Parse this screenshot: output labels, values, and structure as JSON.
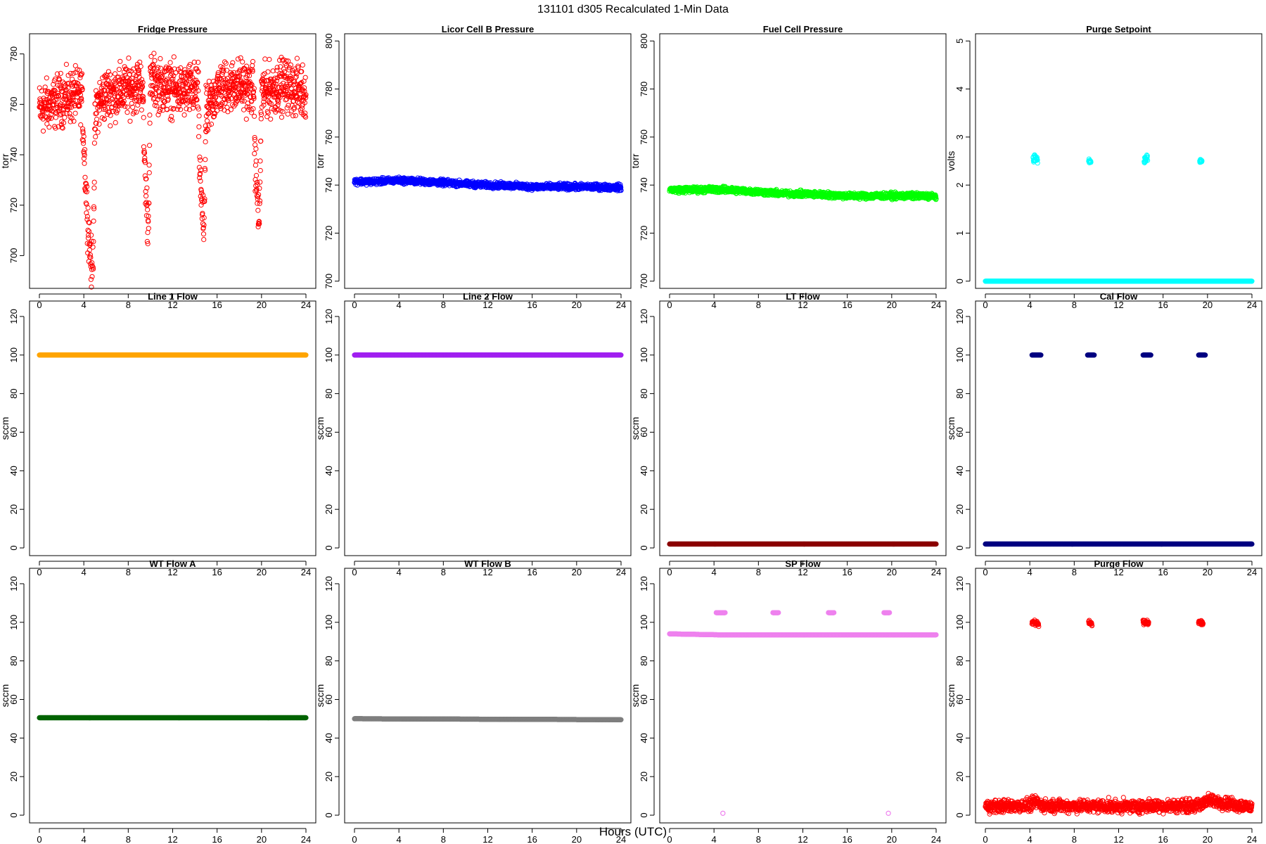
{
  "figure": {
    "title": "131101   d305   Recalculated 1-Min Data",
    "xlabel": "Hours (UTC)"
  },
  "chart_data": [
    {
      "type": "scatter",
      "title": "Fridge Pressure",
      "xlabel": "",
      "ylabel": "torr",
      "color": "#ff0000",
      "marker": "open-circle",
      "xlim": [
        0,
        24
      ],
      "xticks": [
        0,
        4,
        8,
        12,
        16,
        20,
        24
      ],
      "ylim": [
        687,
        788
      ],
      "yticks": [
        700,
        720,
        740,
        760,
        780
      ],
      "series": [
        {
          "spread": 5,
          "points": [
            [
              0.0,
              758
            ],
            [
              1.0,
              760
            ],
            [
              2.0,
              762
            ],
            [
              3.0,
              763
            ],
            [
              3.8,
              764
            ],
            [
              4.0,
              745
            ],
            [
              4.2,
              725
            ],
            [
              4.4,
              712
            ],
            [
              4.6,
              700
            ],
            [
              4.8,
              690
            ],
            [
              5.0,
              750
            ],
            [
              5.2,
              760
            ],
            [
              6.0,
              764
            ],
            [
              7.0,
              765
            ],
            [
              8.0,
              766
            ],
            [
              9.0,
              768
            ],
            [
              9.3,
              768
            ],
            [
              9.4,
              745
            ],
            [
              9.6,
              725
            ],
            [
              9.8,
              710
            ],
            [
              10.0,
              770
            ],
            [
              11.0,
              767
            ],
            [
              12.0,
              766
            ],
            [
              13.0,
              765
            ],
            [
              14.0,
              766
            ],
            [
              14.3,
              766
            ],
            [
              14.4,
              740
            ],
            [
              14.6,
              720
            ],
            [
              14.8,
              710
            ],
            [
              15.0,
              755
            ],
            [
              16.0,
              766
            ],
            [
              17.0,
              767
            ],
            [
              18.0,
              768
            ],
            [
              19.0,
              766
            ],
            [
              19.3,
              766
            ],
            [
              19.4,
              740
            ],
            [
              19.6,
              725
            ],
            [
              19.8,
              712
            ],
            [
              20.0,
              765
            ],
            [
              21.0,
              766
            ],
            [
              22.0,
              768
            ],
            [
              23.0,
              766
            ],
            [
              24.0,
              765
            ]
          ]
        }
      ]
    },
    {
      "type": "scatter",
      "title": "Licor Cell B Pressure",
      "xlabel": "",
      "ylabel": "torr",
      "color": "#0000ff",
      "marker": "open-circle",
      "xlim": [
        0,
        24
      ],
      "xticks": [
        0,
        4,
        8,
        12,
        16,
        20,
        24
      ],
      "ylim": [
        697,
        803
      ],
      "yticks": [
        700,
        720,
        740,
        760,
        780,
        800
      ],
      "series": [
        {
          "spread": 0.6,
          "points": [
            [
              0,
              741.5
            ],
            [
              2,
              741.5
            ],
            [
              4,
              742
            ],
            [
              6,
              741.5
            ],
            [
              8,
              741
            ],
            [
              10,
              740.5
            ],
            [
              12,
              740
            ],
            [
              14,
              739.8
            ],
            [
              16,
              739.3
            ],
            [
              18,
              739.3
            ],
            [
              20,
              739.3
            ],
            [
              22,
              739.2
            ],
            [
              24,
              739
            ]
          ]
        }
      ]
    },
    {
      "type": "scatter",
      "title": "Fuel Cell Pressure",
      "xlabel": "",
      "ylabel": "torr",
      "color": "#00ff00",
      "marker": "open-circle",
      "xlim": [
        0,
        24
      ],
      "xticks": [
        0,
        4,
        8,
        12,
        16,
        20,
        24
      ],
      "ylim": [
        697,
        803
      ],
      "yticks": [
        700,
        720,
        740,
        760,
        780,
        800
      ],
      "series": [
        {
          "spread": 0.6,
          "points": [
            [
              0,
              738
            ],
            [
              2,
              738
            ],
            [
              4,
              738.2
            ],
            [
              6,
              737.8
            ],
            [
              8,
              737.2
            ],
            [
              10,
              736.5
            ],
            [
              12,
              736.3
            ],
            [
              14,
              736
            ],
            [
              16,
              735.5
            ],
            [
              18,
              735.5
            ],
            [
              20,
              735.5
            ],
            [
              22,
              735.5
            ],
            [
              24,
              735.3
            ]
          ]
        }
      ]
    },
    {
      "type": "scatter",
      "title": "Purge Setpoint",
      "xlabel": "",
      "ylabel": "volts",
      "color": "#00ffff",
      "marker": "open-circle",
      "xlim": [
        0,
        24
      ],
      "xticks": [
        0,
        4,
        8,
        12,
        16,
        20,
        24
      ],
      "ylim": [
        -0.15,
        5.15
      ],
      "yticks": [
        0,
        1,
        2,
        3,
        4,
        5
      ],
      "series": [
        {
          "spread": 0,
          "points": [
            [
              0,
              0
            ],
            [
              24,
              0
            ]
          ]
        },
        {
          "spread": 0.04,
          "points": [
            [
              4.3,
              2.5
            ],
            [
              4.5,
              2.55
            ],
            [
              4.7,
              2.57
            ]
          ]
        },
        {
          "spread": 0.02,
          "points": [
            [
              9.3,
              2.5
            ],
            [
              9.5,
              2.48
            ]
          ]
        },
        {
          "spread": 0.04,
          "points": [
            [
              14.3,
              2.5
            ],
            [
              14.5,
              2.55
            ],
            [
              14.6,
              2.57
            ]
          ]
        },
        {
          "spread": 0.02,
          "points": [
            [
              19.3,
              2.5
            ],
            [
              19.5,
              2.5
            ]
          ]
        }
      ]
    },
    {
      "type": "scatter",
      "title": "Line 1 Flow",
      "xlabel": "",
      "ylabel": "sccm",
      "color": "#ffa500",
      "marker": "open-circle",
      "xlim": [
        0,
        24
      ],
      "xticks": [
        0,
        4,
        8,
        12,
        16,
        20,
        24
      ],
      "ylim": [
        -4,
        128
      ],
      "yticks": [
        0,
        20,
        40,
        60,
        80,
        100,
        120
      ],
      "series": [
        {
          "spread": 0,
          "points": [
            [
              0,
              100
            ],
            [
              24,
              100
            ]
          ]
        }
      ]
    },
    {
      "type": "scatter",
      "title": "Line 2 Flow",
      "xlabel": "",
      "ylabel": "sccm",
      "color": "#a020f0",
      "marker": "open-circle",
      "xlim": [
        0,
        24
      ],
      "xticks": [
        0,
        4,
        8,
        12,
        16,
        20,
        24
      ],
      "ylim": [
        -4,
        128
      ],
      "yticks": [
        0,
        20,
        40,
        60,
        80,
        100,
        120
      ],
      "series": [
        {
          "spread": 0,
          "points": [
            [
              0,
              100
            ],
            [
              24,
              100
            ]
          ]
        }
      ]
    },
    {
      "type": "scatter",
      "title": "LT Flow",
      "xlabel": "",
      "ylabel": "sccm",
      "color": "#8b0000",
      "marker": "open-circle",
      "xlim": [
        0,
        24
      ],
      "xticks": [
        0,
        4,
        8,
        12,
        16,
        20,
        24
      ],
      "ylim": [
        -4,
        128
      ],
      "yticks": [
        0,
        20,
        40,
        60,
        80,
        100,
        120
      ],
      "series": [
        {
          "spread": 0,
          "points": [
            [
              0,
              2
            ],
            [
              24,
              2
            ]
          ]
        }
      ]
    },
    {
      "type": "scatter",
      "title": "Cal Flow",
      "xlabel": "",
      "ylabel": "sccm",
      "color": "#000080",
      "marker": "open-circle",
      "xlim": [
        0,
        24
      ],
      "xticks": [
        0,
        4,
        8,
        12,
        16,
        20,
        24
      ],
      "ylim": [
        -4,
        128
      ],
      "yticks": [
        0,
        20,
        40,
        60,
        80,
        100,
        120
      ],
      "series": [
        {
          "spread": 0,
          "points": [
            [
              0,
              2
            ],
            [
              24,
              2
            ]
          ]
        },
        {
          "spread": 0,
          "points": [
            [
              4.2,
              100
            ],
            [
              5.0,
              100
            ]
          ]
        },
        {
          "spread": 0,
          "points": [
            [
              9.2,
              100
            ],
            [
              9.8,
              100
            ]
          ]
        },
        {
          "spread": 0,
          "points": [
            [
              14.2,
              100
            ],
            [
              14.9,
              100
            ]
          ]
        },
        {
          "spread": 0,
          "points": [
            [
              19.2,
              100
            ],
            [
              19.8,
              100
            ]
          ]
        }
      ]
    },
    {
      "type": "scatter",
      "title": "WT Flow A",
      "xlabel": "",
      "ylabel": "sccm",
      "color": "#006400",
      "marker": "open-circle",
      "xlim": [
        0,
        24
      ],
      "xticks": [
        0,
        4,
        8,
        12,
        16,
        20,
        24
      ],
      "ylim": [
        -4,
        128
      ],
      "yticks": [
        0,
        20,
        40,
        60,
        80,
        100,
        120
      ],
      "series": [
        {
          "spread": 0,
          "points": [
            [
              0,
              50.5
            ],
            [
              24,
              50.5
            ]
          ]
        }
      ]
    },
    {
      "type": "scatter",
      "title": "WT Flow B",
      "xlabel": "",
      "ylabel": "sccm",
      "color": "#7f7f7f",
      "marker": "open-circle",
      "xlim": [
        0,
        24
      ],
      "xticks": [
        0,
        4,
        8,
        12,
        16,
        20,
        24
      ],
      "ylim": [
        -4,
        128
      ],
      "yticks": [
        0,
        20,
        40,
        60,
        80,
        100,
        120
      ],
      "series": [
        {
          "spread": 0,
          "points": [
            [
              0,
              50
            ],
            [
              24,
              49.5
            ]
          ]
        }
      ]
    },
    {
      "type": "scatter",
      "title": "SP Flow",
      "xlabel": "",
      "ylabel": "sccm",
      "color": "#ee82ee",
      "marker": "open-circle",
      "xlim": [
        0,
        24
      ],
      "xticks": [
        0,
        4,
        8,
        12,
        16,
        20,
        24
      ],
      "ylim": [
        -4,
        128
      ],
      "yticks": [
        0,
        20,
        40,
        60,
        80,
        100,
        120
      ],
      "series": [
        {
          "spread": 0,
          "points": [
            [
              0,
              94
            ],
            [
              4.5,
              93.5
            ],
            [
              24,
              93.5
            ]
          ]
        },
        {
          "spread": 0,
          "points": [
            [
              4.2,
              105
            ],
            [
              5.0,
              105
            ]
          ]
        },
        {
          "spread": 0,
          "points": [
            [
              9.3,
              105
            ],
            [
              9.8,
              105
            ]
          ]
        },
        {
          "spread": 0,
          "points": [
            [
              14.3,
              105
            ],
            [
              14.8,
              105
            ]
          ]
        },
        {
          "spread": 0,
          "points": [
            [
              19.3,
              105
            ],
            [
              19.8,
              105
            ]
          ]
        },
        {
          "spread": 0,
          "points": [
            [
              4.8,
              1
            ]
          ]
        },
        {
          "spread": 0,
          "points": [
            [
              19.7,
              1
            ]
          ]
        }
      ]
    },
    {
      "type": "scatter",
      "title": "Purge Flow",
      "xlabel": "",
      "ylabel": "sccm",
      "color": "#ff0000",
      "marker": "open-circle",
      "xlim": [
        0,
        24
      ],
      "xticks": [
        0,
        4,
        8,
        12,
        16,
        20,
        24
      ],
      "ylim": [
        -4,
        128
      ],
      "yticks": [
        0,
        20,
        40,
        60,
        80,
        100,
        120
      ],
      "series": [
        {
          "spread": 1.6,
          "points": [
            [
              0,
              4.5
            ],
            [
              4,
              5
            ],
            [
              4.6,
              7
            ],
            [
              5,
              5
            ],
            [
              12,
              4.5
            ],
            [
              19.5,
              5
            ],
            [
              19.8,
              8
            ],
            [
              24,
              4
            ]
          ]
        },
        {
          "spread": 0.6,
          "points": [
            [
              4.2,
              100
            ],
            [
              4.8,
              99.5
            ]
          ]
        },
        {
          "spread": 0.6,
          "points": [
            [
              9.3,
              100
            ],
            [
              9.6,
              99.5
            ]
          ]
        },
        {
          "spread": 0.6,
          "points": [
            [
              14.2,
              100
            ],
            [
              14.7,
              99.5
            ]
          ]
        },
        {
          "spread": 0.6,
          "points": [
            [
              19.2,
              100
            ],
            [
              19.6,
              99.5
            ]
          ]
        }
      ]
    }
  ]
}
